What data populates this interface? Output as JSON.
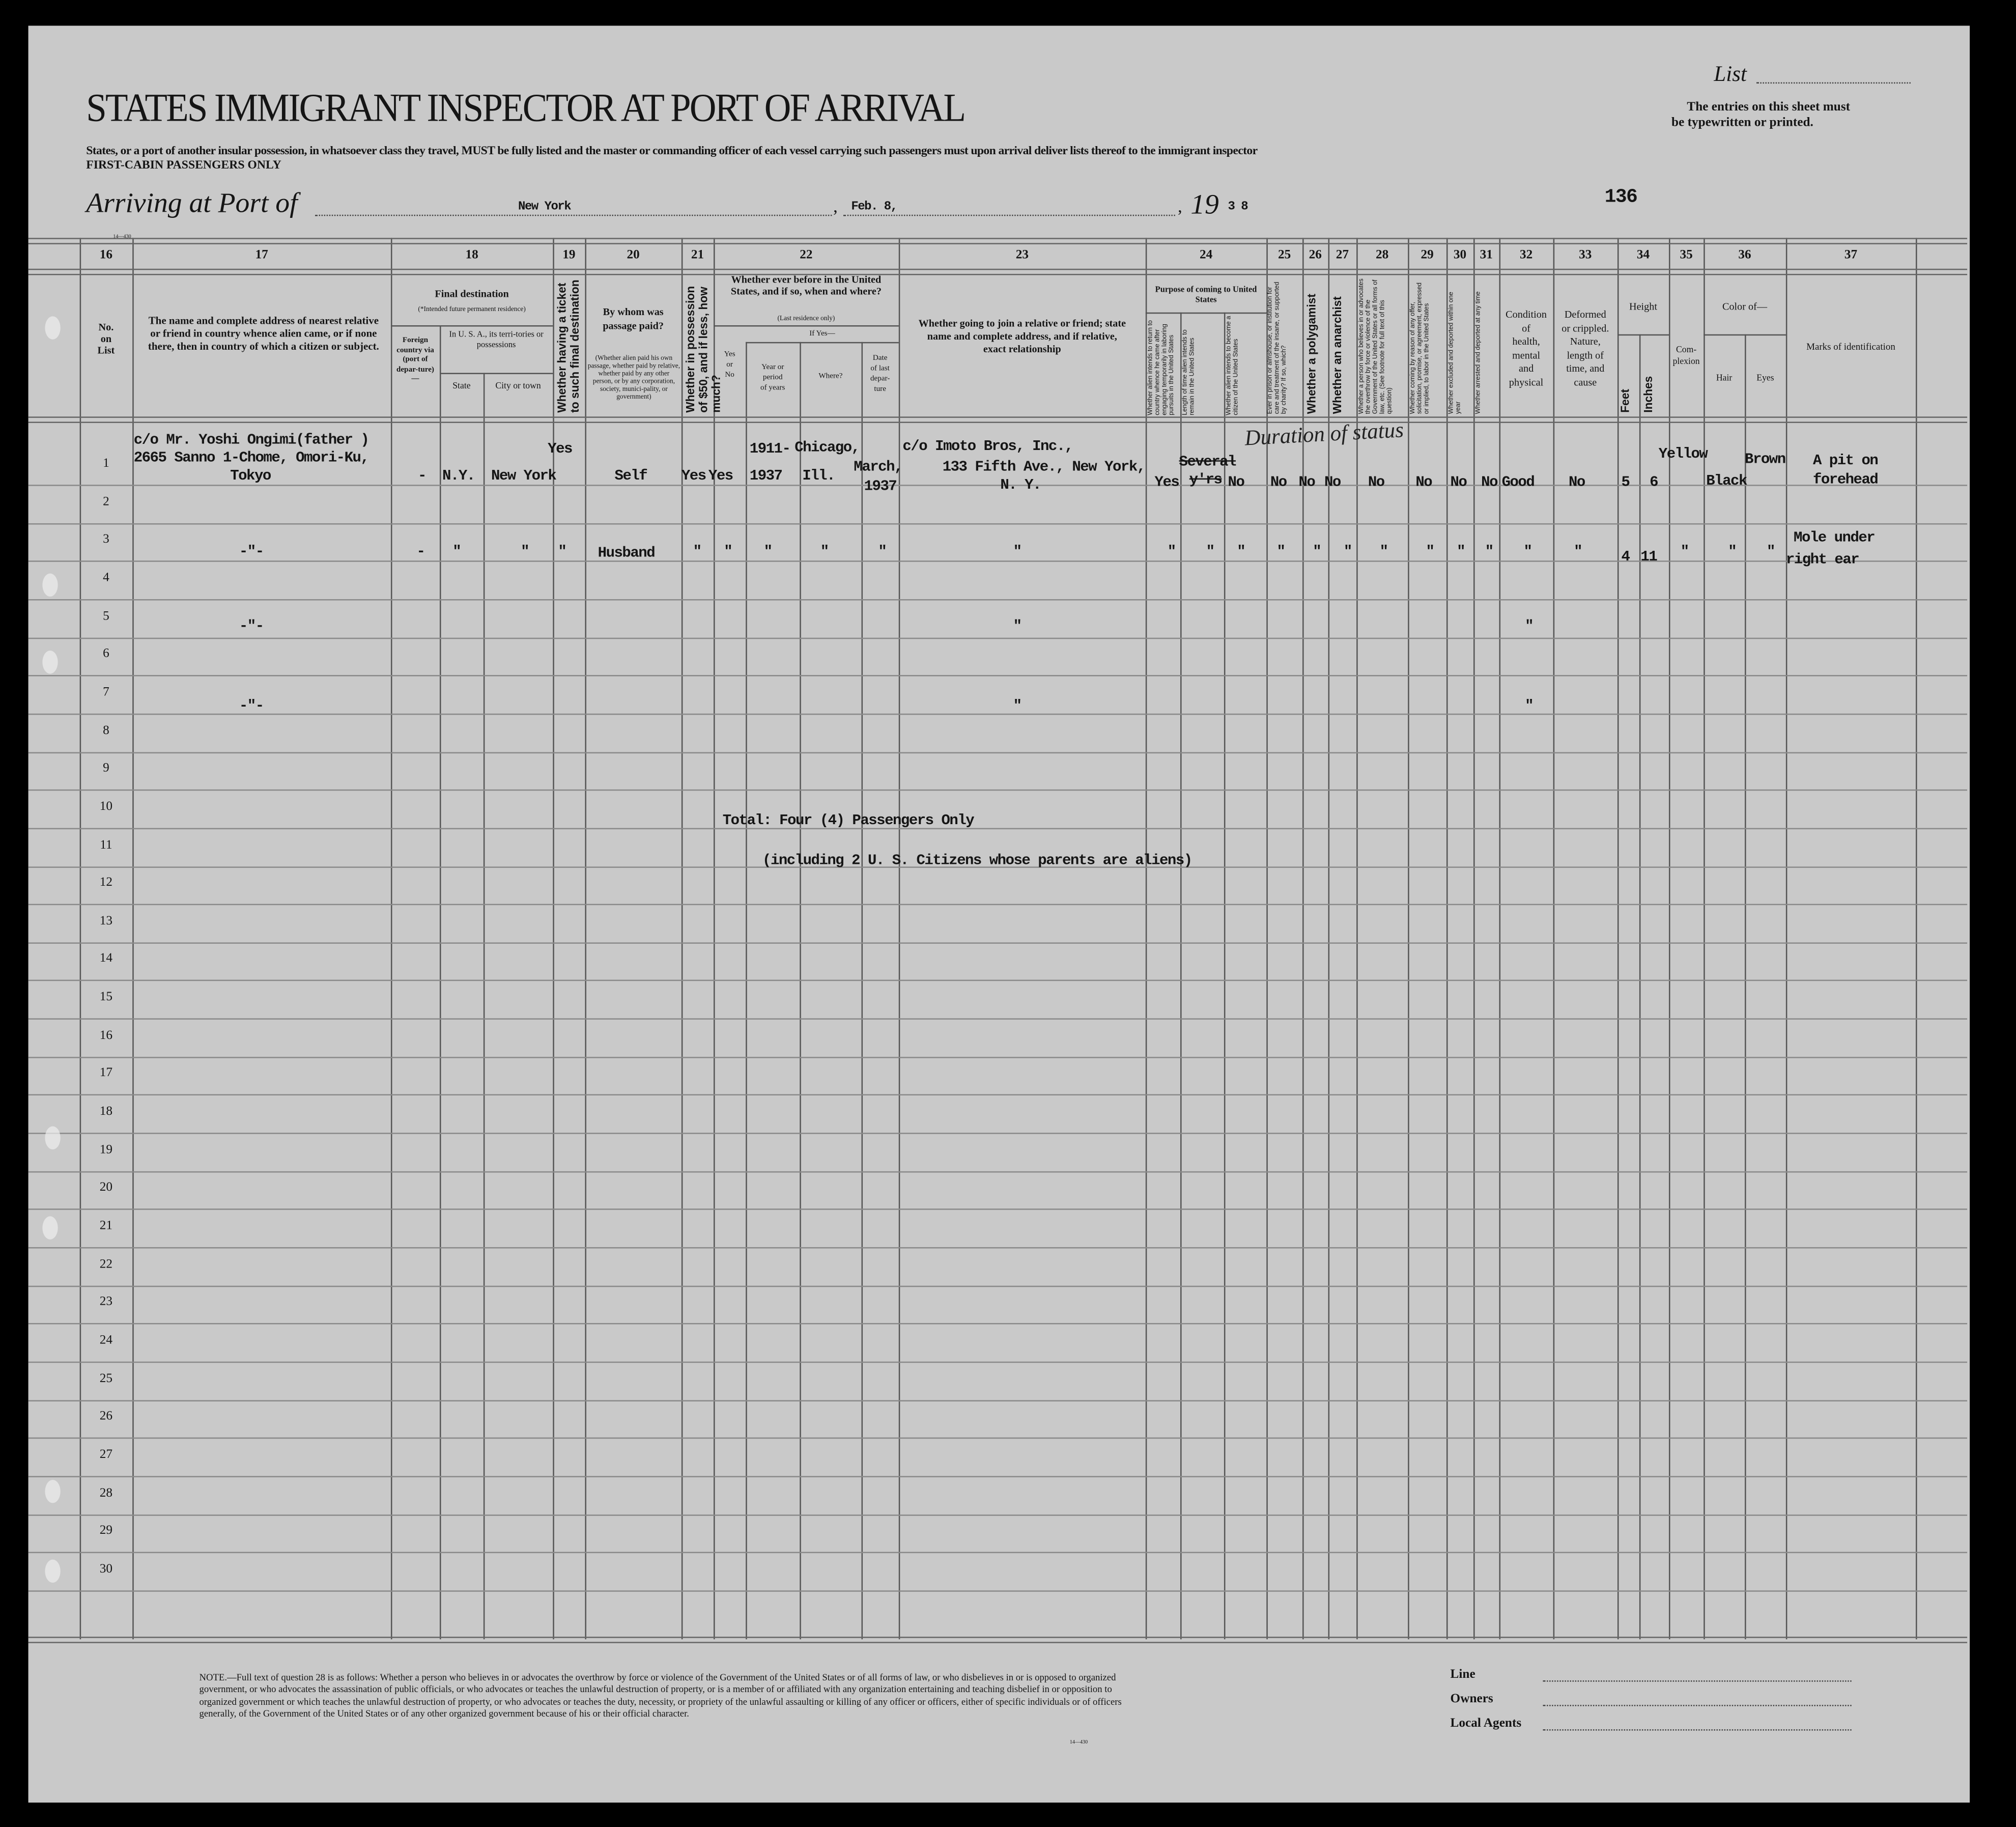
{
  "header": {
    "list_label": "List",
    "title": "STATES IMMIGRANT INSPECTOR AT PORT OF ARRIVAL",
    "instructions": "States, or a port of another insular possession, in whatsoever class they travel, MUST be fully listed and the master or commanding officer of each vessel carrying such passengers must upon arrival deliver lists thereof to the immigrant inspector",
    "class_note": "FIRST-CABIN PASSENGERS ONLY",
    "entries_note_1": "The entries on this sheet must",
    "entries_note_2": "be typewritten or printed.",
    "arriving_label": "Arriving at Port of",
    "port": "New York",
    "date": "Feb. 8,",
    "year_prefix": "19",
    "year_suffix": "3 8",
    "sheet_number": "136",
    "form_number": "14—430"
  },
  "columns": {
    "numbers": [
      "16",
      "17",
      "18",
      "19",
      "20",
      "21",
      "22",
      "23",
      "24",
      "25",
      "26",
      "27",
      "28",
      "29",
      "30",
      "31",
      "32",
      "33",
      "34",
      "35",
      "36",
      "37"
    ],
    "c16": "No.\non\nList",
    "c17": "The name and complete address of nearest relative or friend in country whence alien came, or if none there, then in country of which a citizen or subject.",
    "c18": "Final destination",
    "c18_note": "(*Intended future permanent residence)",
    "c18_foreign": "Foreign country via (port of depar-ture)—",
    "c18_usa": "In U. S. A., its terri-tories or possessions",
    "c18_state": "State",
    "c18_city": "City or town",
    "c19": "Whether having a ticket to such final destination",
    "c20": "By whom was passage paid?",
    "c20_note": "(Whether alien paid his own passage, whether paid by relative, whether paid by any other person, or by any corporation, society, munici-pality, or government)",
    "c21": "Whether in possession of $50, and if less, how much?",
    "c22": "Whether ever before in the United States, and if so, when and where?",
    "c22_note": "(Last residence only)",
    "c22_ifyes": "If Yes—",
    "c22_yesno": "Yes\nor\nNo",
    "c22_year": "Year or\nperiod\nof years",
    "c22_where": "Where?",
    "c22_date": "Date\nof last\ndepar-\nture",
    "c23": "Whether going to join a relative or friend; state name and complete address, and if relative, exact relationship",
    "c24": "Purpose of coming to United States",
    "c24_a": "Whether alien intends to return to country whence he came after engaging temporarily in laboring pursuits in the United States",
    "c24_b": "Length of time alien intends to remain in the United States",
    "c24_c": "Whether alien intends to become a citizen of the United States",
    "c25": "Ever in prison or almshouse, or institution for care and treatment of the insane, or supported by charity? If so, which?",
    "c26": "Whether a polygamist",
    "c27": "Whether an anarchist",
    "c28": "Whether a person who believes in or advocates the overthrow by force or violence of the Government of the United States or all forms of law, etc. (See footnote for full text of this question)",
    "c29": "Whether coming by reason of any offer, solicitation, promise, or agreement, expressed or implied, to labor in the United States",
    "c30": "Whether excluded and deported within one year",
    "c31": "Whether arrested and deported at any time",
    "c32": "Condition\nof\nhealth,\nmental\nand\nphysical",
    "c33": "Deformed\nor crippled.\nNature,\nlength of\ntime, and\ncause",
    "c34": "Height",
    "c34_feet": "Feet",
    "c34_inches": "Inches",
    "c35": "Com-\nplexion",
    "c36": "Color of—",
    "c36_hair": "Hair",
    "c36_eyes": "Eyes",
    "c37": "Marks of identification"
  },
  "row_numbers": [
    "1",
    "2",
    "3",
    "4",
    "5",
    "6",
    "7",
    "8",
    "9",
    "10",
    "11",
    "12",
    "13",
    "14",
    "15",
    "16",
    "17",
    "18",
    "19",
    "20",
    "21",
    "22",
    "23",
    "24",
    "25",
    "26",
    "27",
    "28",
    "29",
    "30"
  ],
  "entries": {
    "ditto": "\"",
    "ditto_name": "-\"-",
    "row1": {
      "relative_line1": "c/o Mr. Yoshi Ongimi(father )",
      "relative_line2": "2665 Sanno 1-Chome, Omori-Ku,",
      "relative_line3": "Tokyo",
      "foreign_country": "-",
      "state": "N.Y.",
      "city": "New York",
      "ticket": "Yes",
      "passage_paid_by": "Self",
      "possession_50": "Yes",
      "ever_before": "Yes",
      "years_1": "1911-",
      "years_2": "1937",
      "where_1": "Chicago,",
      "where_2": "Ill.",
      "last_departure_1": "March,",
      "last_departure_2": "1937",
      "joining_1": "c/o Imoto Bros, Inc.,",
      "joining_2": "133 Fifth Ave., New York,",
      "joining_3": "N. Y.",
      "return_intent": "Yes",
      "length_struck_1": "Several",
      "length_struck_2": "y'rs",
      "length_handwritten": "Duration of status",
      "citizen_intent": "No",
      "prison": "No",
      "polygamist": "No",
      "anarchist": "No",
      "q28": "No",
      "labor_offer": "No",
      "excluded": "No",
      "arrested": "No",
      "health": "Good",
      "deformed": "No",
      "feet": "5",
      "inches": "6",
      "complexion": "Yellow",
      "hair": "Black",
      "eyes": "Brown",
      "marks_1": "A pit on",
      "marks_2": "forehead"
    },
    "row3": {
      "passage_paid_by": "Husband",
      "feet": "4",
      "inches": "11",
      "marks_1": "Mole under",
      "marks_2": "right ear"
    },
    "total_line": "Total:    Four  (4) Passengers Only",
    "including_line": "(including 2 U. S. Citizens whose parents are aliens)"
  },
  "footer": {
    "note": "NOTE.—Full text of question 28 is as follows: Whether a person who believes in or advocates the overthrow by force or violence of the Government of the United States or of all forms of law, or who disbelieves in or is opposed to organized government, or who advocates the assassination of public officials, or who advocates or teaches the unlawful destruction of property, or is a member of or affiliated with any organization entertaining and teaching disbelief in or opposition to organized government or which teaches the unlawful destruction of property, or who advocates or teaches the duty, necessity, or propriety of the unlawful assaulting or killing of any officer or officers, either of specific individuals or of officers generally, of the Government of the United States or of any other organized government because of his or their official character.",
    "form_number": "14—430",
    "line_label": "Line",
    "owners_label": "Owners",
    "agents_label": "Local Agents"
  }
}
